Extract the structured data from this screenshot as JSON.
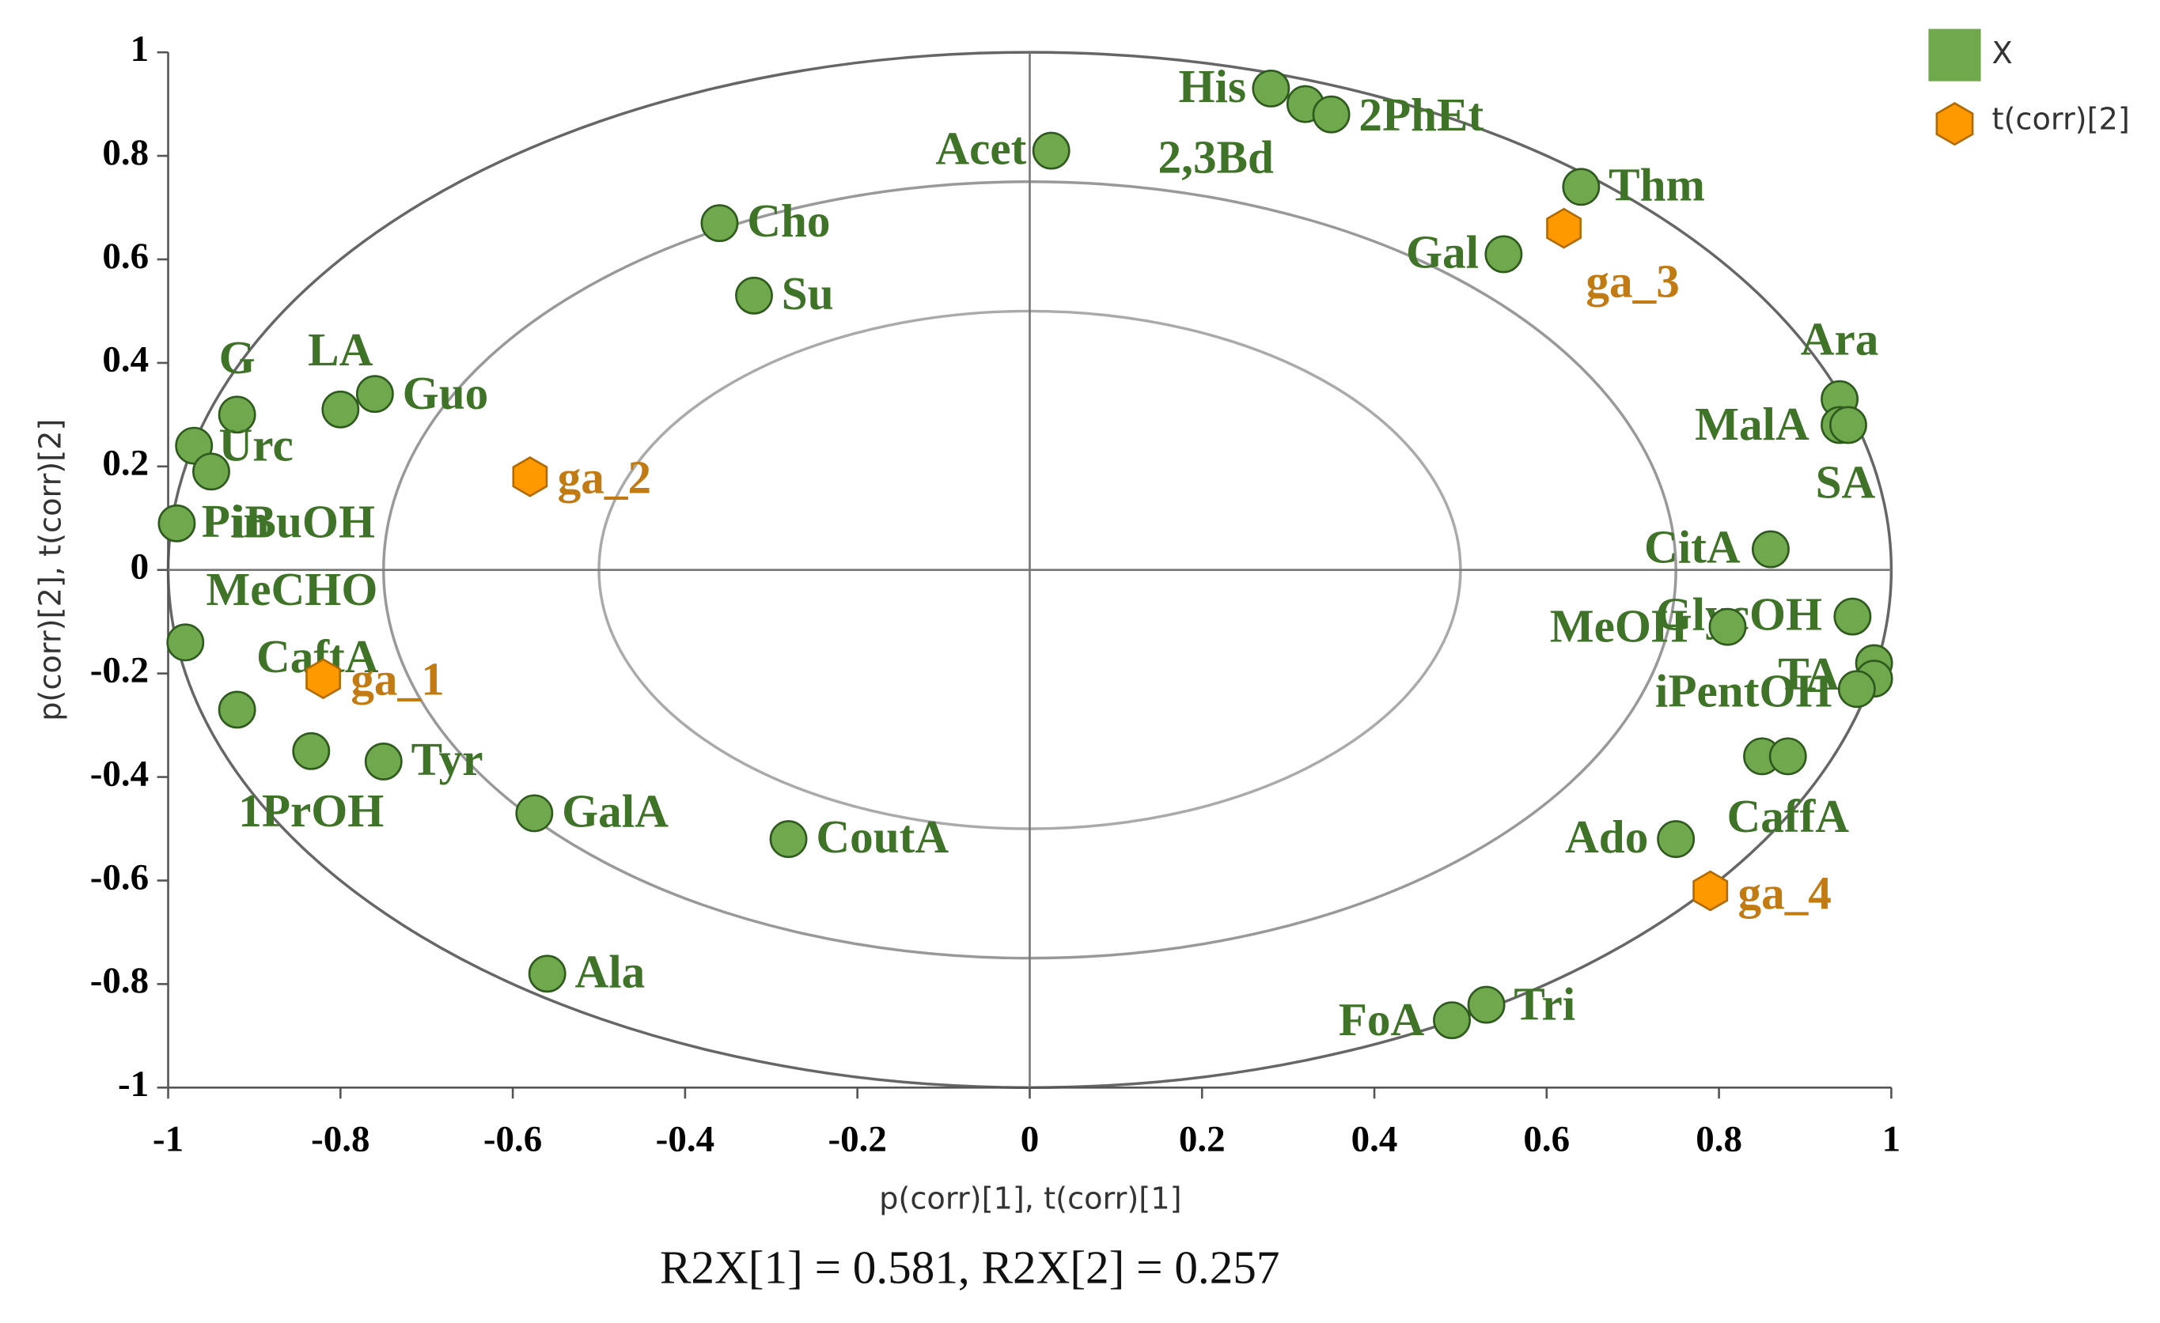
{
  "chart_data": {
    "type": "scatter",
    "xlabel": "p(corr)[1], t(corr)[1]",
    "ylabel": "p(corr)[2], t(corr)[2]",
    "subtitle": "R2X[1] = 0.581, R2X[2] = 0.257",
    "xlim": [
      -1,
      1
    ],
    "ylim": [
      -1,
      1
    ],
    "xticks": [
      -1,
      -0.8,
      -0.6,
      -0.4,
      -0.2,
      0,
      0.2,
      0.4,
      0.6,
      0.8,
      1
    ],
    "yticks": [
      -1,
      -0.8,
      -0.6,
      -0.4,
      -0.2,
      0,
      0.2,
      0.4,
      0.6,
      0.8,
      1
    ],
    "series": [
      {
        "name": "X",
        "color": "#70a84e",
        "x": [
          0.28,
          0.32,
          0.35,
          0.025,
          0.64,
          0.55,
          -0.36,
          -0.32,
          0.94,
          0.94,
          0.95,
          -0.92,
          -0.8,
          -0.76,
          -0.97,
          -0.95,
          -0.99,
          0.86,
          0.955,
          0.81,
          -0.98,
          0.98,
          0.98,
          0.96,
          -0.92,
          -0.834,
          -0.75,
          0.85,
          0.88,
          -0.575,
          -0.28,
          0.75,
          -0.56,
          0.53,
          0.49
        ],
        "values": [
          0.93,
          0.9,
          0.88,
          0.81,
          0.74,
          0.61,
          0.67,
          0.53,
          0.33,
          0.28,
          0.28,
          0.3,
          0.31,
          0.34,
          0.24,
          0.19,
          0.09,
          0.04,
          -0.09,
          -0.11,
          -0.14,
          -0.18,
          -0.21,
          -0.23,
          -0.27,
          -0.35,
          -0.37,
          -0.36,
          -0.36,
          -0.47,
          -0.52,
          -0.52,
          -0.78,
          -0.84,
          -0.87
        ],
        "labels": [
          "His",
          "2,3Bd",
          "2PhEt",
          "Acet",
          "Thm",
          "Gal",
          "Cho",
          "Su",
          "Ara",
          "MalA",
          "SA",
          "G",
          "LA",
          "Guo",
          "Urc",
          "iBuOH",
          "Pin",
          "CitA",
          "GlycOH",
          "MeOH",
          "MeCHO",
          null,
          "TA",
          "iPentOH",
          "CaftA",
          "1PrOH",
          "Tyr",
          null,
          "CaffA",
          "GalA",
          "CoutA",
          "Ado",
          "Ala",
          "Tri",
          "FoA"
        ]
      },
      {
        "name": "t(corr)[2]",
        "color": "#ff9900",
        "x": [
          -0.82,
          -0.58,
          0.62,
          0.79
        ],
        "values": [
          -0.21,
          0.18,
          0.66,
          -0.62
        ],
        "labels": [
          "ga_1",
          "ga_2",
          "ga_3",
          "ga_4"
        ]
      }
    ]
  }
}
